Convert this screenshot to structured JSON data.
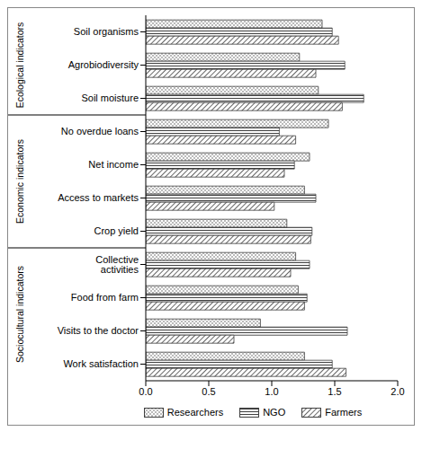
{
  "chart_data": {
    "type": "bar",
    "orientation": "horizontal",
    "categories": [
      "Soil organisms",
      "Agrobiodiversity",
      "Soil moisture",
      "No overdue loans",
      "Net income",
      "Access to markets",
      "Crop yield",
      "Collective activities",
      "Food from farm",
      "Visits to the doctor",
      "Work satisfaction"
    ],
    "series": [
      {
        "name": "Researchers",
        "color": "#404040",
        "values": [
          1.4,
          1.22,
          1.37,
          1.45,
          1.3,
          1.26,
          1.12,
          1.19,
          1.21,
          0.91,
          1.26
        ]
      },
      {
        "name": "NGO",
        "color": "#404040",
        "values": [
          1.48,
          1.58,
          1.73,
          1.06,
          1.18,
          1.35,
          1.32,
          1.3,
          1.28,
          1.6,
          1.48
        ]
      },
      {
        "name": "Farmers",
        "color": "#404040",
        "values": [
          1.53,
          1.35,
          1.56,
          1.19,
          1.1,
          1.02,
          1.31,
          1.15,
          1.26,
          0.7,
          1.59
        ]
      }
    ],
    "xlim": [
      0,
      2
    ],
    "xticks": [
      {
        "value": 0,
        "label": "0.0"
      },
      0.5,
      {
        "value": 1,
        "label": "1.0"
      },
      1.5,
      {
        "value": 2,
        "label": "2.0"
      }
    ],
    "grid": false,
    "legend": "bottom",
    "groups": [
      {
        "label": "Ecological indicators",
        "categories": [
          "Soil organisms",
          "Agrobiodiversity",
          "Soil moisture"
        ]
      },
      {
        "label": "Economic indicators",
        "categories": [
          "No overdue loans",
          "Net income",
          "Access to markets",
          "Crop yield"
        ]
      },
      {
        "label": "Sociocultural indicators",
        "categories": [
          "Collective activities",
          "Food from farm",
          "Visits to the doctor",
          "Work satisfaction"
        ]
      }
    ]
  }
}
